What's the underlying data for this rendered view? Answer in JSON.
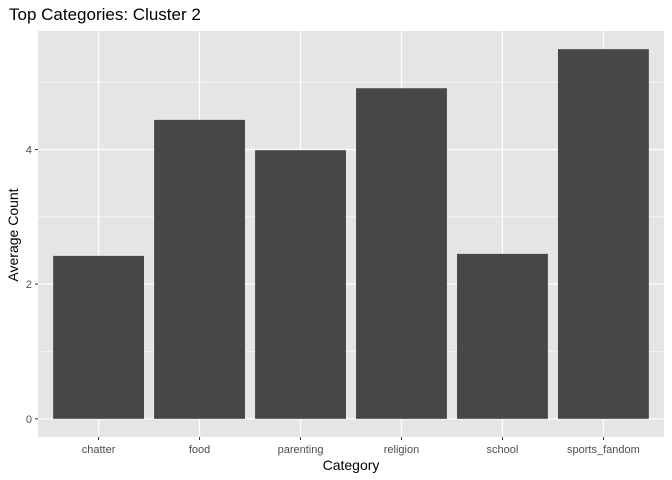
{
  "chart_data": {
    "type": "bar",
    "title": "Top Categories: Cluster 2",
    "xlabel": "Category",
    "ylabel": "Average Count",
    "categories": [
      "chatter",
      "food",
      "parenting",
      "religion",
      "school",
      "sports_fandom"
    ],
    "values": [
      2.42,
      4.44,
      3.99,
      4.91,
      2.45,
      5.49
    ],
    "ylim": [
      -0.27,
      5.76
    ],
    "yticks": [
      0,
      2,
      4
    ],
    "grid": true,
    "colors": {
      "bar": "#474747",
      "panel": "#e5e5e5",
      "gridline": "#ffffff",
      "tick_label": "#4d4d4d"
    }
  }
}
